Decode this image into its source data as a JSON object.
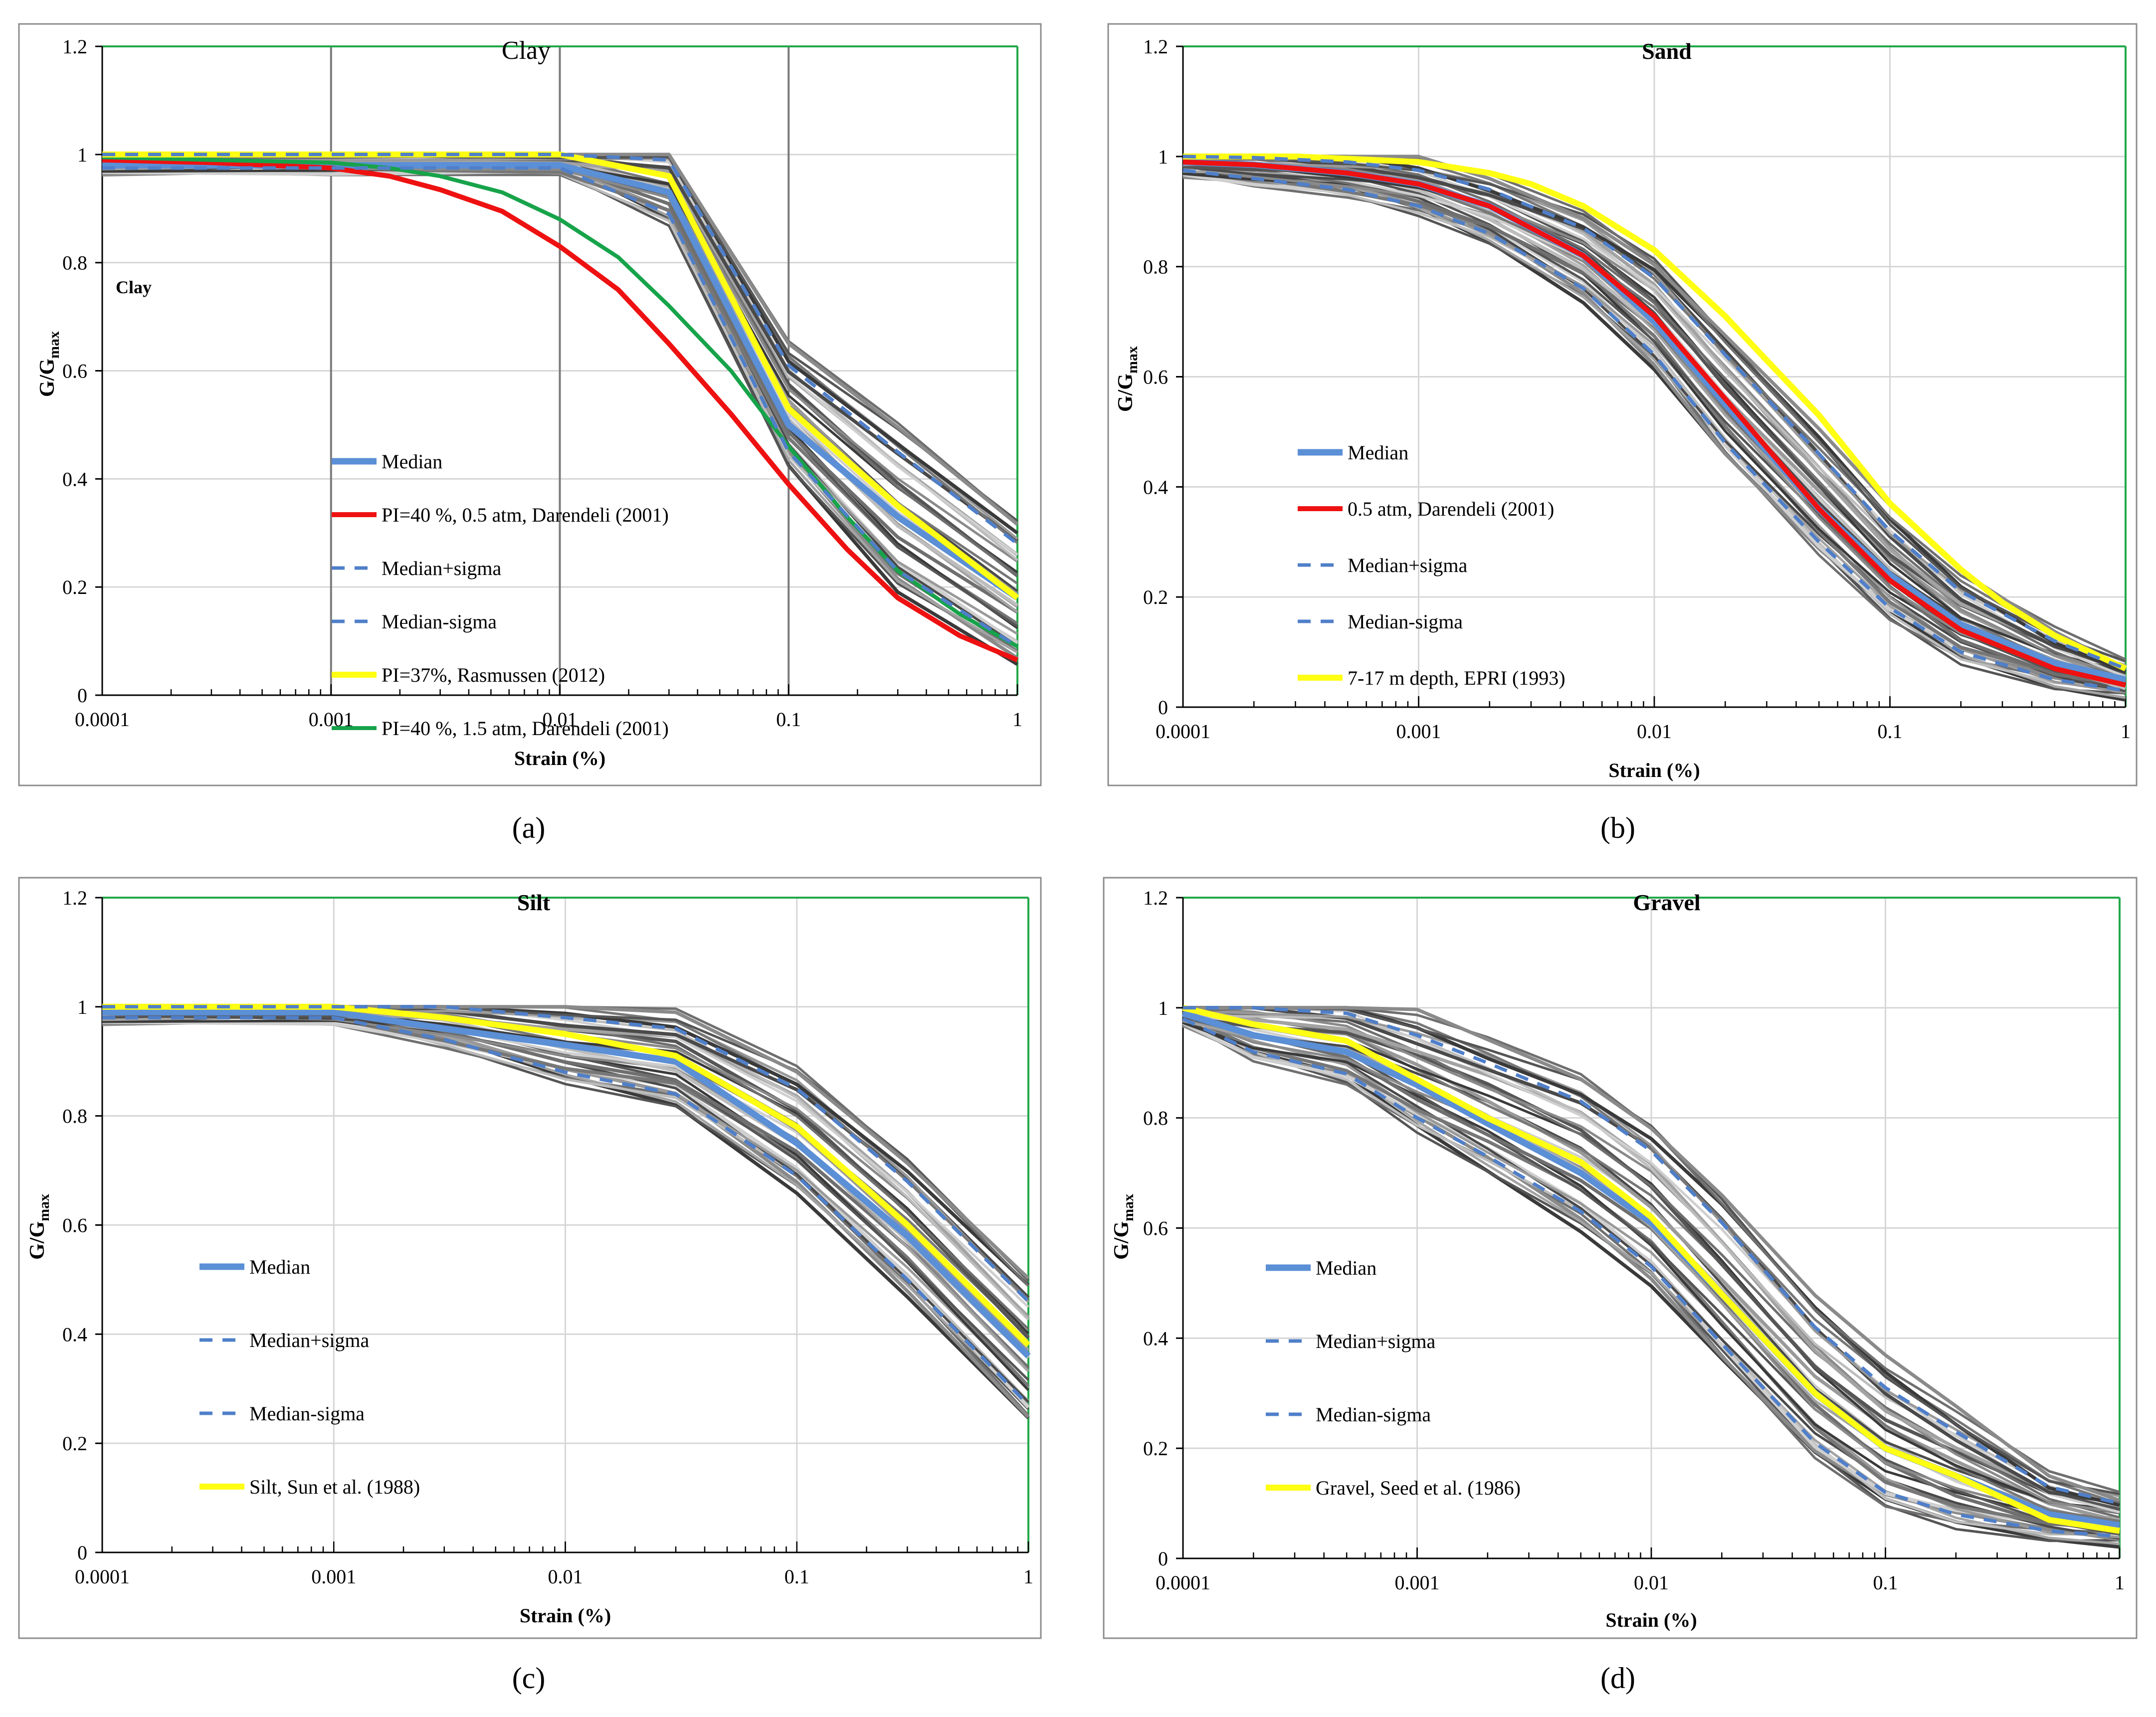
{
  "figure_labels": [
    "(a)",
    "(b)",
    "(c)",
    "(d)"
  ],
  "chart_data": [
    {
      "type": "line",
      "panel": "(a)",
      "title": "Clay",
      "annotation": "Clay",
      "xlabel": "Strain (%)",
      "ylabel": "G/G",
      "ylabel_sub": "max",
      "xscale": "log",
      "xlim": [
        0.0001,
        1
      ],
      "ylim": [
        0,
        1.2
      ],
      "x_tick_labels": [
        "0.0001",
        "0.001",
        "0.01",
        "0.1",
        "1"
      ],
      "y_tick_labels": [
        "0",
        "0.2",
        "0.4",
        "0.6",
        "0.8",
        "1",
        "1.2"
      ],
      "legend_position": "lower-center",
      "series": [
        {
          "name": "Median",
          "style": "median",
          "x": [
            0.0001,
            0.001,
            0.01,
            0.03,
            0.1,
            0.3,
            1
          ],
          "y": [
            0.98,
            0.98,
            0.98,
            0.93,
            0.5,
            0.33,
            0.18
          ]
        },
        {
          "name": "PI=40 %, 0.5 atm, Darendeli (2001)",
          "style": "red",
          "x": [
            0.0001,
            0.0003,
            0.001,
            0.0018,
            0.003,
            0.0056,
            0.01,
            0.018,
            0.03,
            0.056,
            0.1,
            0.18,
            0.3,
            0.56,
            1
          ],
          "y": [
            0.99,
            0.985,
            0.975,
            0.96,
            0.935,
            0.895,
            0.83,
            0.75,
            0.65,
            0.52,
            0.39,
            0.27,
            0.18,
            0.11,
            0.065
          ]
        },
        {
          "name": "Median+sigma",
          "style": "dash",
          "x": [
            0.0001,
            0.001,
            0.01,
            0.03,
            0.1,
            0.3,
            1
          ],
          "y": [
            1.0,
            1.0,
            1.0,
            0.99,
            0.61,
            0.45,
            0.28
          ]
        },
        {
          "name": "Median-sigma",
          "style": "dash",
          "x": [
            0.0001,
            0.001,
            0.01,
            0.03,
            0.1,
            0.3,
            1
          ],
          "y": [
            0.975,
            0.975,
            0.975,
            0.89,
            0.45,
            0.23,
            0.09
          ]
        },
        {
          "name": "PI=37%, Rasmussen (2012)",
          "style": "yellow",
          "x": [
            0.0001,
            0.001,
            0.01,
            0.03,
            0.1,
            0.3,
            1
          ],
          "y": [
            1.0,
            1.0,
            1.0,
            0.96,
            0.53,
            0.35,
            0.18
          ]
        },
        {
          "name": "PI=40 %, 1.5 atm, Darendeli (2001)",
          "style": "green",
          "x": [
            0.0001,
            0.0003,
            0.001,
            0.0018,
            0.003,
            0.0056,
            0.01,
            0.018,
            0.03,
            0.056,
            0.1,
            0.18,
            0.3,
            0.56,
            1
          ],
          "y": [
            0.995,
            0.99,
            0.985,
            0.975,
            0.96,
            0.93,
            0.88,
            0.81,
            0.72,
            0.6,
            0.46,
            0.33,
            0.23,
            0.15,
            0.09
          ]
        }
      ]
    },
    {
      "type": "line",
      "panel": "(b)",
      "title": "Sand",
      "xlabel": "Strain (%)",
      "ylabel": "G/G",
      "ylabel_sub": "max",
      "xscale": "log",
      "xlim": [
        0.0001,
        1
      ],
      "ylim": [
        0,
        1.2
      ],
      "x_tick_labels": [
        "0.0001",
        "0.001",
        "0.01",
        "0.1",
        "1"
      ],
      "y_tick_labels": [
        "0",
        "0.2",
        "0.4",
        "0.6",
        "0.8",
        "1",
        "1.2"
      ],
      "legend_position": "lower-left",
      "series": [
        {
          "name": "Median",
          "style": "median",
          "x": [
            0.0001,
            0.0002,
            0.0005,
            0.001,
            0.002,
            0.005,
            0.01,
            0.02,
            0.05,
            0.1,
            0.2,
            0.5,
            1
          ],
          "y": [
            0.99,
            0.985,
            0.97,
            0.95,
            0.91,
            0.82,
            0.7,
            0.55,
            0.36,
            0.24,
            0.15,
            0.08,
            0.05
          ]
        },
        {
          "name": "0.5 atm, Darendeli (2001)",
          "style": "red",
          "x": [
            0.0001,
            0.0002,
            0.0005,
            0.001,
            0.002,
            0.005,
            0.01,
            0.02,
            0.05,
            0.1,
            0.2,
            0.5,
            1
          ],
          "y": [
            0.99,
            0.985,
            0.97,
            0.95,
            0.91,
            0.82,
            0.71,
            0.56,
            0.36,
            0.23,
            0.14,
            0.07,
            0.04
          ]
        },
        {
          "name": "Median+sigma",
          "style": "dash",
          "x": [
            0.0001,
            0.0002,
            0.0005,
            0.001,
            0.002,
            0.005,
            0.01,
            0.02,
            0.05,
            0.1,
            0.2,
            0.5,
            1
          ],
          "y": [
            1.0,
            0.998,
            0.99,
            0.975,
            0.94,
            0.87,
            0.78,
            0.64,
            0.46,
            0.32,
            0.21,
            0.12,
            0.07
          ]
        },
        {
          "name": "Median-sigma",
          "style": "dash",
          "x": [
            0.0001,
            0.0002,
            0.0005,
            0.001,
            0.002,
            0.005,
            0.01,
            0.02,
            0.05,
            0.1,
            0.2,
            0.5,
            1
          ],
          "y": [
            0.975,
            0.96,
            0.94,
            0.91,
            0.86,
            0.76,
            0.64,
            0.48,
            0.3,
            0.18,
            0.1,
            0.05,
            0.03
          ]
        },
        {
          "name": "7-17 m depth, EPRI (1993)",
          "style": "yellow",
          "x": [
            0.0001,
            0.0003,
            0.001,
            0.002,
            0.003,
            0.005,
            0.01,
            0.02,
            0.03,
            0.05,
            0.1,
            0.2,
            0.3,
            0.5,
            1
          ],
          "y": [
            1.0,
            1.0,
            0.99,
            0.97,
            0.95,
            0.91,
            0.83,
            0.71,
            0.63,
            0.53,
            0.37,
            0.25,
            0.19,
            0.13,
            0.07
          ]
        }
      ]
    },
    {
      "type": "line",
      "panel": "(c)",
      "title": "Silt",
      "xlabel": "Strain (%)",
      "ylabel": "G/G",
      "ylabel_sub": "max",
      "xscale": "log",
      "xlim": [
        0.0001,
        1
      ],
      "ylim": [
        0,
        1.2
      ],
      "x_tick_labels": [
        "0.0001",
        "0.001",
        "0.01",
        "0.1",
        "1"
      ],
      "y_tick_labels": [
        "0",
        "0.2",
        "0.4",
        "0.6",
        "0.8",
        "1",
        "1.2"
      ],
      "legend_position": "lower-left",
      "series": [
        {
          "name": "Median",
          "style": "median",
          "x": [
            0.0001,
            0.001,
            0.003,
            0.01,
            0.03,
            0.1,
            0.3,
            1
          ],
          "y": [
            0.99,
            0.99,
            0.96,
            0.93,
            0.9,
            0.75,
            0.58,
            0.36
          ]
        },
        {
          "name": "Median+sigma",
          "style": "dash",
          "x": [
            0.0001,
            0.001,
            0.003,
            0.01,
            0.03,
            0.1,
            0.3,
            1
          ],
          "y": [
            1.0,
            1.0,
            1.0,
            0.98,
            0.96,
            0.85,
            0.68,
            0.46
          ]
        },
        {
          "name": "Median-sigma",
          "style": "dash",
          "x": [
            0.0001,
            0.001,
            0.003,
            0.01,
            0.03,
            0.1,
            0.3,
            1
          ],
          "y": [
            0.98,
            0.98,
            0.94,
            0.88,
            0.84,
            0.69,
            0.5,
            0.27
          ]
        },
        {
          "name": "Silt, Sun et al. (1988)",
          "style": "yellow",
          "x": [
            0.0001,
            0.001,
            0.003,
            0.01,
            0.03,
            0.1,
            0.3,
            1
          ],
          "y": [
            1.0,
            1.0,
            0.98,
            0.95,
            0.91,
            0.78,
            0.6,
            0.38
          ]
        }
      ]
    },
    {
      "type": "line",
      "panel": "(d)",
      "title": "Gravel",
      "xlabel": "Strain (%)",
      "ylabel": "G/G",
      "ylabel_sub": "max",
      "xscale": "log",
      "xlim": [
        0.0001,
        1
      ],
      "ylim": [
        0,
        1.2
      ],
      "x_tick_labels": [
        "0.0001",
        "0.001",
        "0.01",
        "0.1",
        "1"
      ],
      "y_tick_labels": [
        "0",
        "0.2",
        "0.4",
        "0.6",
        "0.8",
        "1",
        "1.2"
      ],
      "legend_position": "lower-left",
      "series": [
        {
          "name": "Median",
          "style": "median",
          "x": [
            0.0001,
            0.0002,
            0.0005,
            0.001,
            0.002,
            0.005,
            0.01,
            0.02,
            0.05,
            0.1,
            0.2,
            0.5,
            1
          ],
          "y": [
            0.99,
            0.95,
            0.92,
            0.86,
            0.79,
            0.7,
            0.61,
            0.48,
            0.3,
            0.2,
            0.15,
            0.08,
            0.06
          ]
        },
        {
          "name": "Median+sigma",
          "style": "dash",
          "x": [
            0.0001,
            0.0002,
            0.0005,
            0.001,
            0.002,
            0.005,
            0.01,
            0.02,
            0.05,
            0.1,
            0.2,
            0.5,
            1
          ],
          "y": [
            1.0,
            1.0,
            0.99,
            0.95,
            0.9,
            0.83,
            0.74,
            0.61,
            0.42,
            0.31,
            0.23,
            0.13,
            0.1
          ]
        },
        {
          "name": "Median-sigma",
          "style": "dash",
          "x": [
            0.0001,
            0.0002,
            0.0005,
            0.001,
            0.002,
            0.005,
            0.01,
            0.02,
            0.05,
            0.1,
            0.2,
            0.5,
            1
          ],
          "y": [
            0.98,
            0.92,
            0.88,
            0.8,
            0.73,
            0.63,
            0.53,
            0.39,
            0.21,
            0.12,
            0.08,
            0.05,
            0.04
          ]
        },
        {
          "name": "Gravel, Seed et al. (1986)",
          "style": "yellow",
          "x": [
            0.0001,
            0.0002,
            0.0005,
            0.001,
            0.002,
            0.005,
            0.01,
            0.02,
            0.05,
            0.1,
            0.2,
            0.5,
            1
          ],
          "y": [
            1.0,
            0.97,
            0.94,
            0.87,
            0.8,
            0.72,
            0.62,
            0.48,
            0.3,
            0.2,
            0.15,
            0.07,
            0.05
          ]
        }
      ]
    }
  ]
}
